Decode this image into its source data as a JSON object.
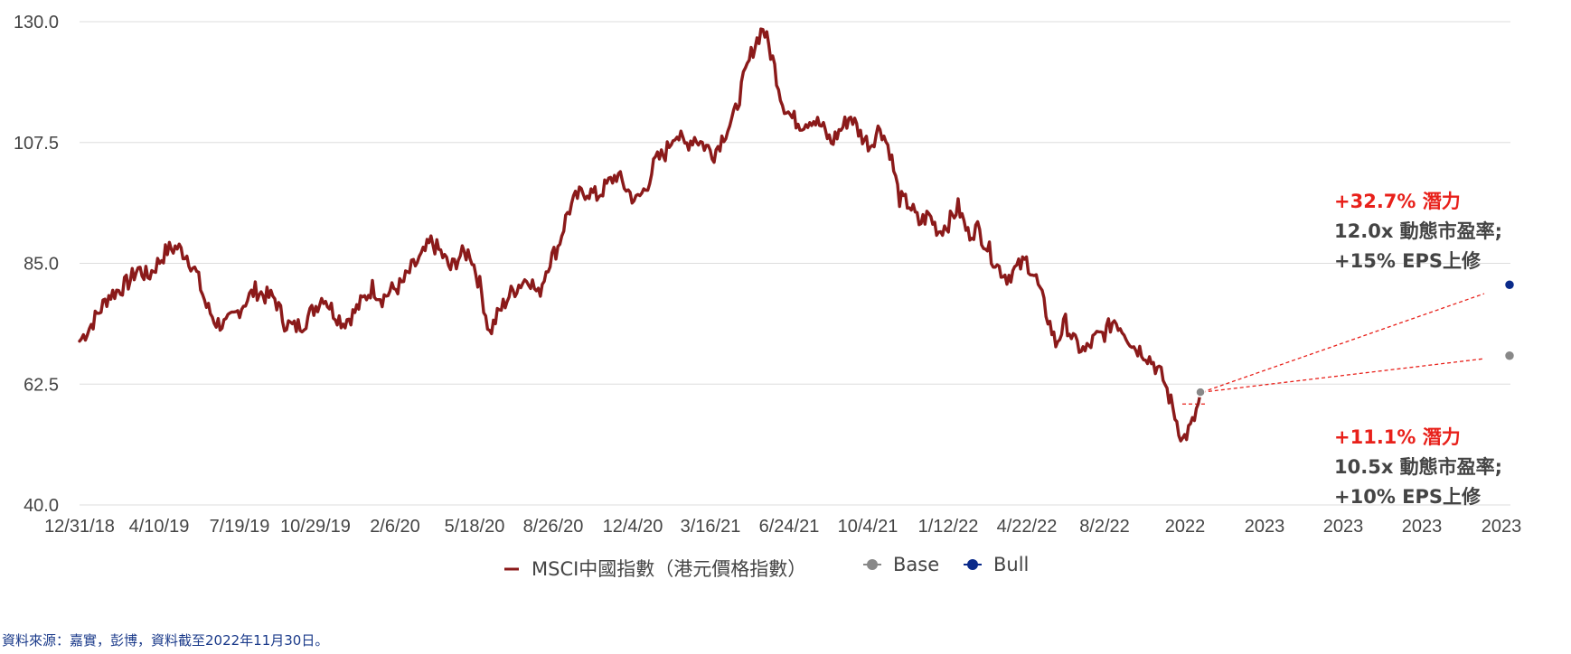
{
  "chart_data": {
    "type": "line",
    "ylim": [
      40,
      130
    ],
    "y_ticks": [
      "130.0",
      "107.5",
      "85.0",
      "62.5",
      "40.0"
    ],
    "y_tick_values": [
      130,
      107.5,
      85,
      62.5,
      40
    ],
    "x_tick_labels": [
      "12/31/18",
      "4/10/19",
      "7/19/19",
      "10/29/19",
      "2/6/20",
      "5/18/20",
      "8/26/20",
      "12/4/20",
      "3/16/21",
      "6/24/21",
      "10/4/21",
      "1/12/22",
      "4/22/22",
      "8/2/22",
      "2022",
      "2023",
      "2023",
      "2023",
      "2023"
    ],
    "grid": true,
    "legend_position": "bottom",
    "series": [
      {
        "name": "MSCI中國指數（港元價格指數）",
        "color": "#8b1a1a",
        "x_start": "2018-12-31",
        "x_end": "2022-11-30",
        "values": [
          70.5,
          73,
          76,
          79,
          80,
          81.5,
          84,
          82.5,
          85,
          87.5,
          88,
          86.5,
          83,
          77,
          74,
          73.5,
          75.5,
          78,
          80,
          79,
          78.5,
          74,
          73,
          74,
          76.5,
          79,
          76,
          74,
          75.5,
          78,
          80.5,
          78.5,
          80,
          81,
          84,
          86,
          89,
          87,
          84,
          86.5,
          87,
          81,
          72,
          76,
          79,
          81,
          82.5,
          79,
          85,
          88,
          94.5,
          97.5,
          98.5,
          97.5,
          99.5,
          101.5,
          99,
          96.5,
          99,
          104,
          105.5,
          109.5,
          107,
          108.5,
          107,
          105.5,
          109,
          112,
          119,
          125,
          129,
          123,
          115,
          112,
          111,
          112,
          110.5,
          107.5,
          110,
          112.5,
          109,
          107,
          110.5,
          106,
          97,
          96,
          92.5,
          94,
          91,
          92.5,
          95.5,
          90.5,
          91.5,
          88,
          84.5,
          82.5,
          84,
          85.5,
          82,
          76,
          70,
          74,
          70,
          68.5,
          71,
          72,
          74.5,
          72.5,
          69.5,
          68.5,
          66.5,
          63.5,
          58,
          52,
          55,
          61
        ]
      }
    ],
    "base_point": {
      "name": "Base",
      "color": "#888888",
      "start_value": 61,
      "end_value": 67.8,
      "potential": "+11.1% 潛力",
      "note1": "10.5x 動態市盈率;",
      "note2": "+10% EPS上修"
    },
    "bull_point": {
      "name": "Bull",
      "color": "#0a2a8a",
      "start_value": 61,
      "end_value": 81,
      "potential": "+32.7% 潛力",
      "note1": "12.0x 動態市盈率;",
      "note2": "+15% EPS上修"
    }
  },
  "source_text": "資料來源：嘉實，彭博，資料截至2022年11月30日。",
  "colors": {
    "accent_red": "#e8201a",
    "dark_text": "#444444",
    "grid": "#dddddd"
  }
}
